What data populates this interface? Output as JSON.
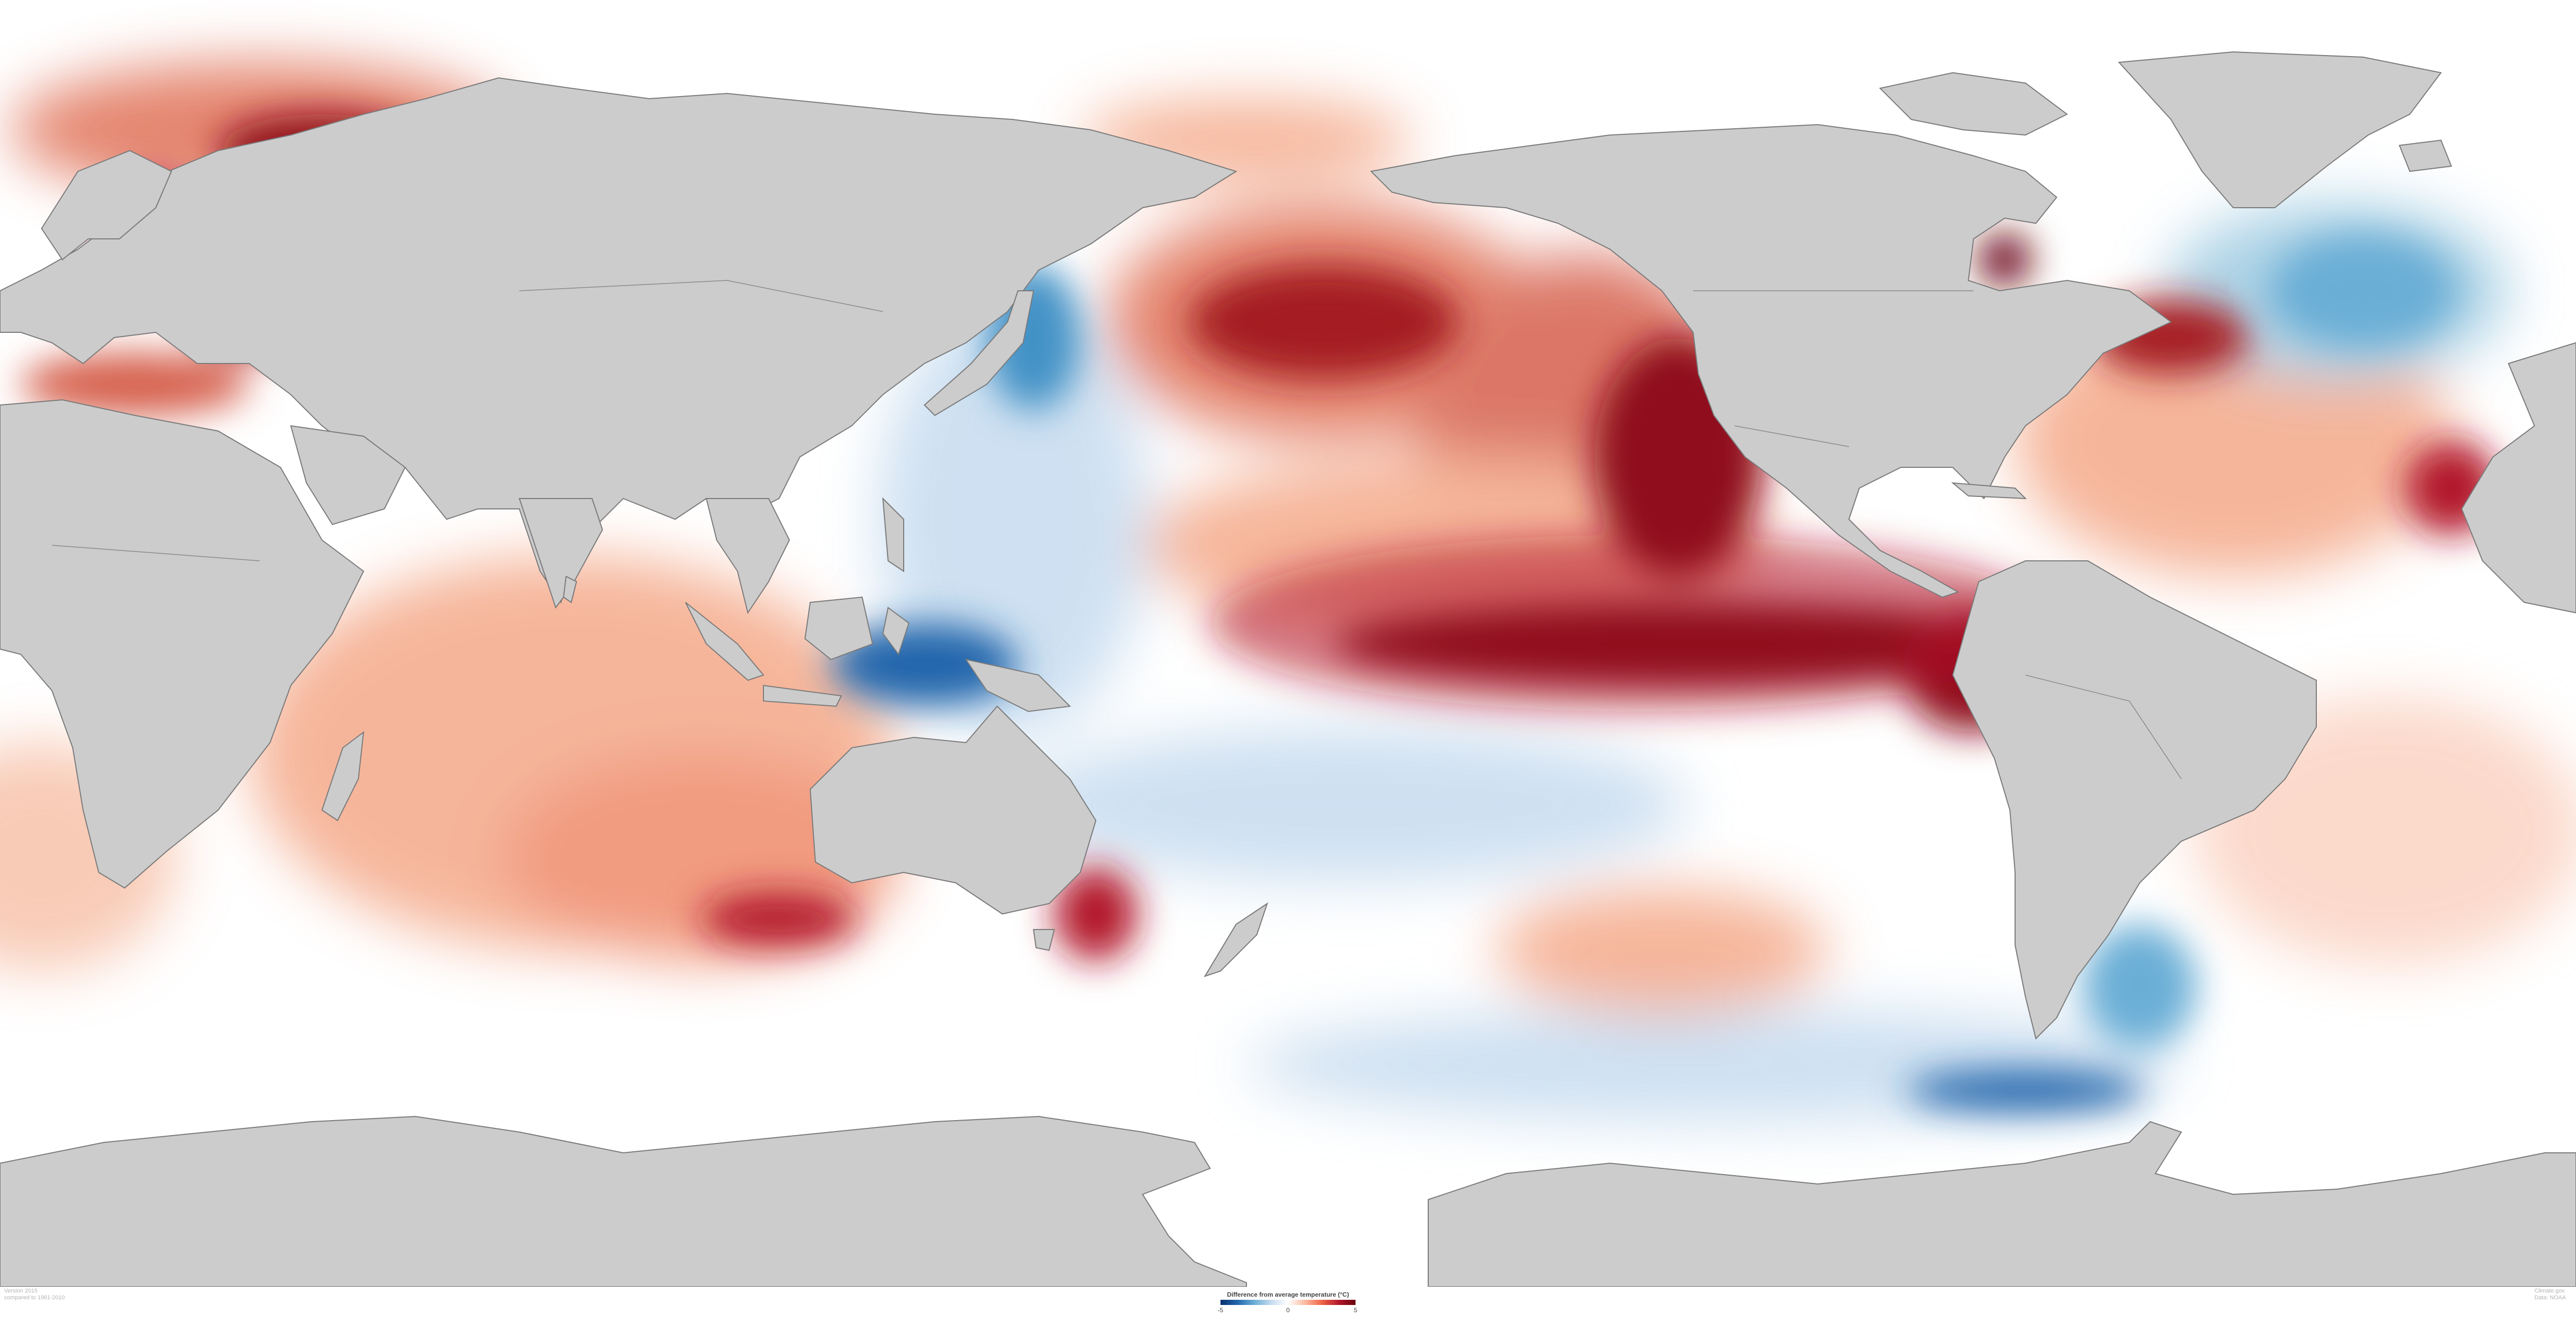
{
  "map": {
    "colors": {
      "land": "#cccccc",
      "land_border": "#7a7a7a",
      "neutral": "#ffffff",
      "warm_light": "#f4a989",
      "warm_mid": "#d6604d",
      "warm_strong": "#b2182b",
      "warm_extreme": "#67000d",
      "cool_light": "#c6dbef",
      "cool_mid": "#6baed6",
      "cool_strong": "#2166ac"
    }
  },
  "legend": {
    "title": "Difference from average temperature (°C)",
    "min_label": "-5",
    "mid_label": "0",
    "max_label": "5"
  },
  "credits": {
    "left_line1": "Version 2015",
    "left_line2": "compared to 1981-2010",
    "right_line1": "Climate.gov",
    "right_line2": "Data: NOAA"
  }
}
